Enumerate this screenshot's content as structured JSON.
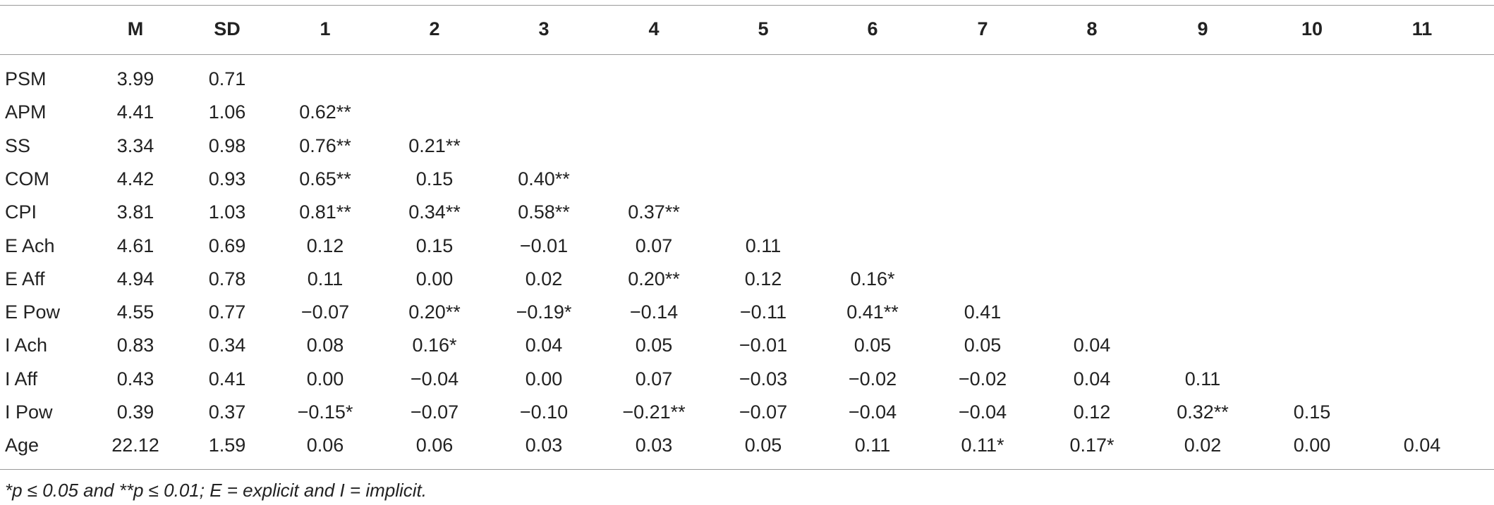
{
  "table": {
    "header": [
      "M",
      "SD",
      "1",
      "2",
      "3",
      "4",
      "5",
      "6",
      "7",
      "8",
      "9",
      "10",
      "11"
    ],
    "rows": [
      [
        "PSM",
        "3.99",
        "0.71"
      ],
      [
        "APM",
        "4.41",
        "1.06",
        "0.62**"
      ],
      [
        "SS",
        "3.34",
        "0.98",
        "0.76**",
        "0.21**"
      ],
      [
        "COM",
        "4.42",
        "0.93",
        "0.65**",
        "0.15",
        "0.40**"
      ],
      [
        "CPI",
        "3.81",
        "1.03",
        "0.81**",
        "0.34**",
        "0.58**",
        "0.37**"
      ],
      [
        "E Ach",
        "4.61",
        "0.69",
        "0.12",
        "0.15",
        "−0.01",
        "0.07",
        "0.11"
      ],
      [
        "E Aff",
        "4.94",
        "0.78",
        "0.11",
        "0.00",
        "0.02",
        "0.20**",
        "0.12",
        "0.16*"
      ],
      [
        "E Pow",
        "4.55",
        "0.77",
        "−0.07",
        "0.20**",
        "−0.19*",
        "−0.14",
        "−0.11",
        "0.41**",
        "0.41"
      ],
      [
        "I Ach",
        "0.83",
        "0.34",
        "0.08",
        "0.16*",
        "0.04",
        "0.05",
        "−0.01",
        "0.05",
        "0.05",
        "0.04"
      ],
      [
        "I Aff",
        "0.43",
        "0.41",
        "0.00",
        "−0.04",
        "0.00",
        "0.07",
        "−0.03",
        "−0.02",
        "−0.02",
        "0.04",
        "0.11"
      ],
      [
        "I Pow",
        "0.39",
        "0.37",
        "−0.15*",
        "−0.07",
        "−0.10",
        "−0.21**",
        "−0.07",
        "−0.04",
        "−0.04",
        "0.12",
        "0.32**",
        "0.15"
      ],
      [
        "Age",
        "22.12",
        "1.59",
        "0.06",
        "0.06",
        "0.03",
        "0.03",
        "0.05",
        "0.11",
        "0.11*",
        "0.17*",
        "0.02",
        "0.00",
        "0.04"
      ]
    ]
  },
  "footnote": "*p ≤ 0.05 and **p ≤ 0.01; E = explicit and I = implicit."
}
